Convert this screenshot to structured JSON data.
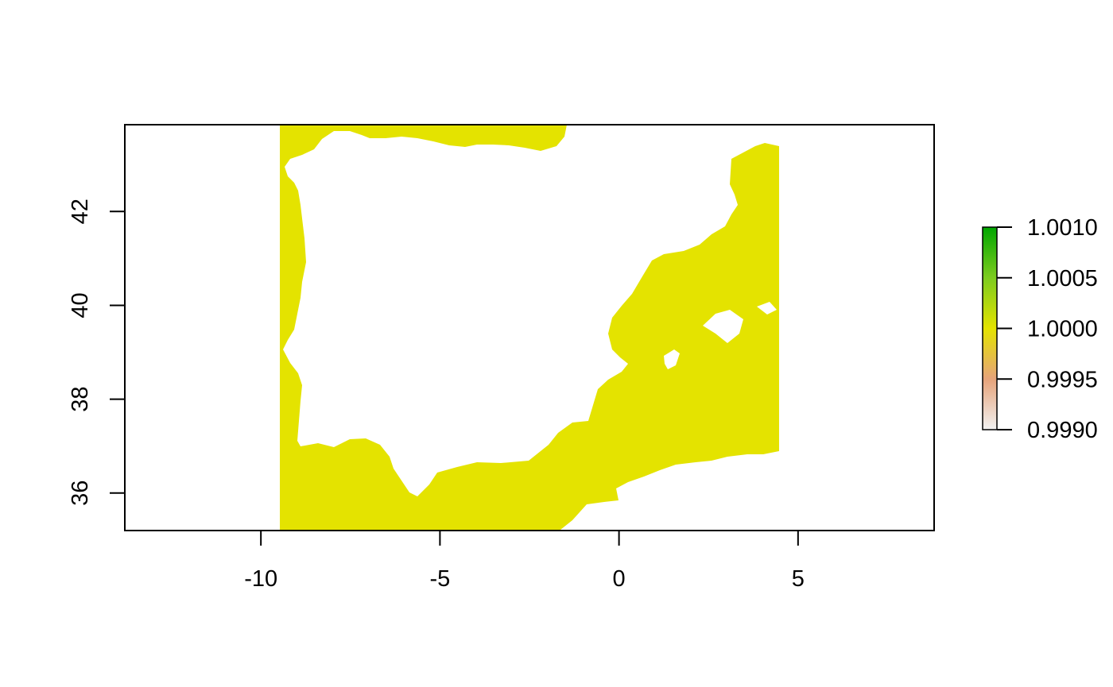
{
  "chart_data": {
    "type": "heatmap",
    "title": "",
    "xlabel": "",
    "ylabel": "",
    "xlim": [
      -13.8,
      8.8
    ],
    "ylim": [
      35.2,
      43.85
    ],
    "xticks": [
      -10,
      -5,
      0,
      5
    ],
    "xtick_labels": [
      "-10",
      "-5",
      "0",
      "5"
    ],
    "yticks": [
      36,
      38,
      40,
      42
    ],
    "ytick_labels": [
      "36",
      "38",
      "40",
      "42"
    ],
    "raster": {
      "extent_lon": [
        -9.45,
        4.45
      ],
      "value": 1.0,
      "color": "#e4e300",
      "description_of_mask": "values present over the sea around the Iberian Peninsula; land and areas outside the raster extent are empty (NA)"
    },
    "legend": {
      "type": "colorbar",
      "placement": "right",
      "range": [
        0.999,
        1.001
      ],
      "ticks": [
        1.001,
        1.0005,
        1.0,
        0.9995,
        0.999
      ],
      "tick_labels": [
        "1.0010",
        "1.0005",
        "1.0000",
        "0.9995",
        "0.9990"
      ],
      "colors": [
        "#f2f2f2",
        "#e6a37a",
        "#e4e300",
        "#7dcc1f",
        "#00a600"
      ]
    },
    "grid": false
  },
  "colors": {
    "fill": "#e4e300",
    "axis": "#000000",
    "background": "#ffffff"
  }
}
